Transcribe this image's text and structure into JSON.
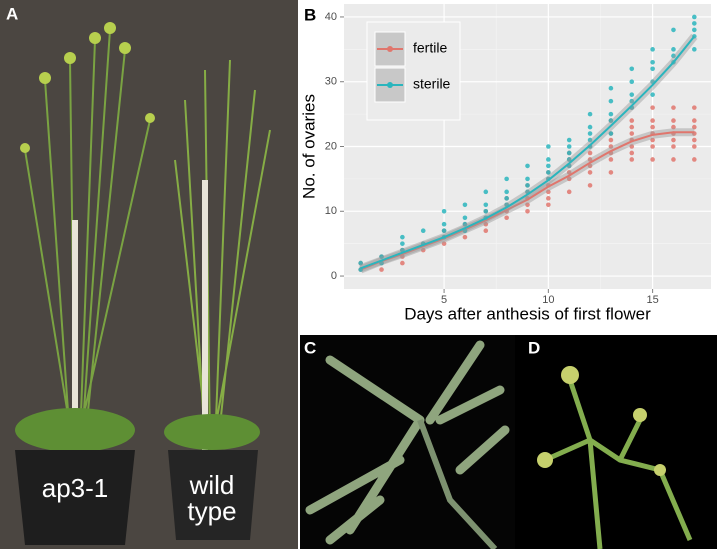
{
  "panels": {
    "a": "A",
    "b": "B",
    "c": "C",
    "d": "D"
  },
  "photo_a": {
    "left_label": "ap3-1",
    "right_label": [
      "wild",
      "type"
    ]
  },
  "chart_data": {
    "type": "scatter",
    "xlabel": "Days after anthesis of first flower",
    "ylabel": "No. of ovaries",
    "xlim": [
      0.2,
      17.8
    ],
    "xticks": [
      5,
      10,
      15
    ],
    "ylim": [
      -2,
      42
    ],
    "yticks": [
      0,
      10,
      20,
      30,
      40
    ],
    "grid": true,
    "legend": "top-left",
    "days": [
      1,
      2,
      3,
      4,
      5,
      6,
      7,
      8,
      9,
      10,
      11,
      12,
      13,
      14,
      15,
      16,
      17
    ],
    "series": [
      {
        "name": "fertile",
        "color": "#e0766d",
        "x": [
          1,
          1,
          2,
          2,
          2,
          3,
          3,
          3,
          4,
          4,
          5,
          5,
          5,
          6,
          6,
          6,
          7,
          7,
          7,
          7,
          8,
          8,
          8,
          8,
          9,
          9,
          9,
          9,
          9,
          10,
          10,
          10,
          10,
          10,
          10,
          11,
          11,
          11,
          11,
          11,
          11,
          12,
          12,
          12,
          12,
          12,
          12,
          13,
          13,
          13,
          13,
          13,
          13,
          13,
          14,
          14,
          14,
          14,
          14,
          14,
          14,
          14,
          15,
          15,
          15,
          15,
          15,
          15,
          15,
          16,
          16,
          16,
          16,
          16,
          16,
          16,
          17,
          17,
          17,
          17,
          17,
          17,
          17
        ],
        "values": [
          1,
          2,
          1,
          2,
          3,
          2,
          3,
          4,
          4,
          5,
          5,
          6,
          7,
          6,
          7,
          8,
          7,
          8,
          9,
          10,
          9,
          10,
          11,
          12,
          10,
          11,
          12,
          13,
          14,
          11,
          12,
          13,
          14,
          15,
          16,
          13,
          15,
          16,
          17,
          18,
          19,
          14,
          16,
          17,
          18,
          19,
          20,
          16,
          18,
          19,
          20,
          21,
          22,
          24,
          18,
          19,
          20,
          21,
          22,
          23,
          24,
          26,
          18,
          20,
          21,
          22,
          23,
          24,
          26,
          18,
          20,
          21,
          22,
          23,
          24,
          26,
          18,
          20,
          21,
          22,
          23,
          24,
          26
        ],
        "fit": [
          1,
          2.3,
          3.4,
          4.6,
          5.8,
          7.2,
          8.6,
          10.2,
          11.8,
          13.8,
          15.5,
          17.5,
          19.3,
          20.8,
          21.8,
          22.2,
          22.2
        ]
      },
      {
        "name": "sterile",
        "color": "#2ab5bd",
        "x": [
          1,
          1,
          2,
          2,
          3,
          3,
          3,
          4,
          4,
          5,
          5,
          5,
          5,
          6,
          6,
          6,
          6,
          7,
          7,
          7,
          7,
          8,
          8,
          8,
          8,
          9,
          9,
          9,
          9,
          10,
          10,
          10,
          10,
          10,
          11,
          11,
          11,
          11,
          11,
          12,
          12,
          12,
          12,
          12,
          13,
          13,
          13,
          13,
          13,
          14,
          14,
          14,
          14,
          14,
          15,
          15,
          15,
          15,
          15,
          16,
          16,
          16,
          16,
          17,
          17,
          17,
          17,
          17
        ],
        "values": [
          1,
          2,
          2,
          3,
          4,
          5,
          6,
          5,
          7,
          6,
          7,
          8,
          10,
          7,
          8,
          9,
          11,
          9,
          10,
          11,
          13,
          11,
          12,
          13,
          15,
          13,
          14,
          15,
          17,
          15,
          16,
          17,
          18,
          20,
          17,
          18,
          19,
          20,
          21,
          20,
          21,
          22,
          23,
          25,
          22,
          24,
          25,
          27,
          29,
          26,
          27,
          28,
          30,
          32,
          28,
          30,
          32,
          33,
          35,
          33,
          34,
          35,
          38,
          35,
          37,
          38,
          39,
          40
        ],
        "fit": [
          1.2,
          2.4,
          3.6,
          4.8,
          6,
          7.4,
          8.9,
          10.6,
          12.6,
          14.8,
          17.4,
          20.2,
          23.2,
          26.3,
          29.5,
          33,
          37
        ]
      }
    ]
  }
}
